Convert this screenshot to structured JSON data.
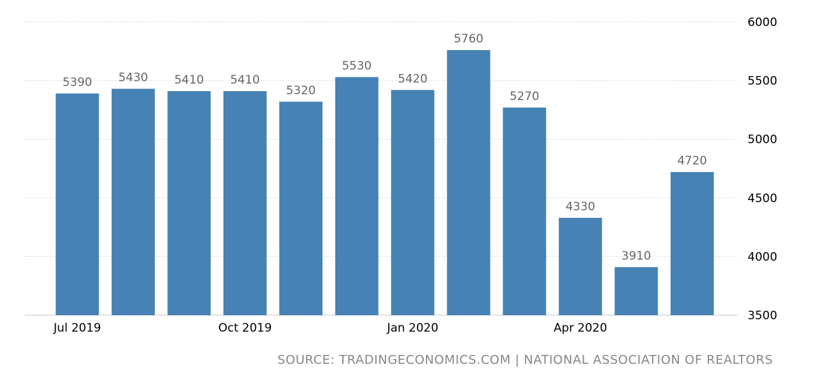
{
  "chart_data": {
    "type": "bar",
    "categories": [
      "Jul 2019",
      "Aug 2019",
      "Sep 2019",
      "Oct 2019",
      "Nov 2019",
      "Dec 2019",
      "Jan 2020",
      "Feb 2020",
      "Mar 2020",
      "Apr 2020",
      "May 2020",
      "Jun 2020"
    ],
    "values": [
      5390,
      5430,
      5410,
      5410,
      5320,
      5530,
      5420,
      5760,
      5270,
      4330,
      3910,
      4720
    ],
    "data_labels": [
      "5390",
      "5430",
      "5410",
      "5410",
      "5320",
      "5530",
      "5420",
      "5760",
      "5270",
      "4330",
      "3910",
      "4720"
    ],
    "x_tick_labels": [
      {
        "category": "Jul 2019",
        "label": "Jul 2019"
      },
      {
        "category": "Oct 2019",
        "label": "Oct 2019"
      },
      {
        "category": "Jan 2020",
        "label": "Jan 2020"
      },
      {
        "category": "Apr 2020",
        "label": "Apr 2020"
      }
    ],
    "y_ticks": [
      3500,
      4000,
      4500,
      5000,
      5500,
      6000
    ],
    "ylim": [
      3500,
      6000
    ],
    "y_axis_side": "right",
    "grid": true,
    "bar_color": "#4682b4",
    "title": "",
    "xlabel": "",
    "ylabel": ""
  },
  "footer": {
    "source_text": "SOURCE: TRADINGECONOMICS.COM | NATIONAL ASSOCIATION OF REALTORS"
  }
}
